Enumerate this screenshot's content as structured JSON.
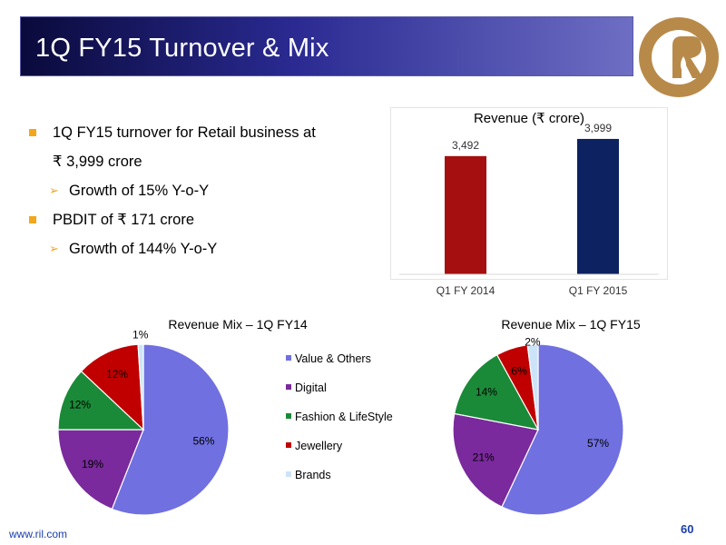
{
  "slide": {
    "title": "1Q FY15 Turnover & Mix",
    "footer_url": "www.ril.com",
    "page_number": "60"
  },
  "bullets": {
    "b1_line1": "1Q FY15 turnover for Retail business at",
    "b1_line2": "₹ 3,999 crore",
    "b1_sub": "Growth of 15% Y-o-Y",
    "b2": "PBDIT of ₹ 171 crore",
    "b2_sub": "Growth of 144% Y-o-Y",
    "bullet_color": "#F2A71A"
  },
  "legend": {
    "items": [
      "Value & Others",
      "Digital",
      "Fashion & LifeStyle",
      "Jewellery",
      "Brands"
    ]
  },
  "chart_data": [
    {
      "type": "bar",
      "title": "Revenue (₹ crore)",
      "categories": [
        "Q1 FY 2014",
        "Q1 FY 2015"
      ],
      "values": [
        3492,
        3999
      ],
      "value_labels": [
        "3,492",
        "3,999"
      ],
      "colors": [
        "#A50F0F",
        "#0D2260"
      ],
      "ylim": [
        0,
        4400
      ],
      "grid": false
    },
    {
      "type": "pie",
      "title": "Revenue Mix – 1Q FY14",
      "categories": [
        "Value & Others",
        "Digital",
        "Fashion & LifeStyle",
        "Jewellery",
        "Brands"
      ],
      "values": [
        56,
        19,
        12,
        12,
        1
      ],
      "labels": [
        "56%",
        "19%",
        "12%",
        "12%",
        "1%"
      ],
      "colors": [
        "#7070E0",
        "#7A2A9C",
        "#1A8A38",
        "#C00000",
        "#CCE4F8"
      ]
    },
    {
      "type": "pie",
      "title": "Revenue Mix – 1Q FY15",
      "categories": [
        "Value & Others",
        "Digital",
        "Fashion & LifeStyle",
        "Jewellery",
        "Brands"
      ],
      "values": [
        57,
        21,
        14,
        6,
        2
      ],
      "labels": [
        "57%",
        "21%",
        "14%",
        "6%",
        "2%"
      ],
      "colors": [
        "#7070E0",
        "#7A2A9C",
        "#1A8A38",
        "#C00000",
        "#CCE4F8"
      ]
    }
  ]
}
